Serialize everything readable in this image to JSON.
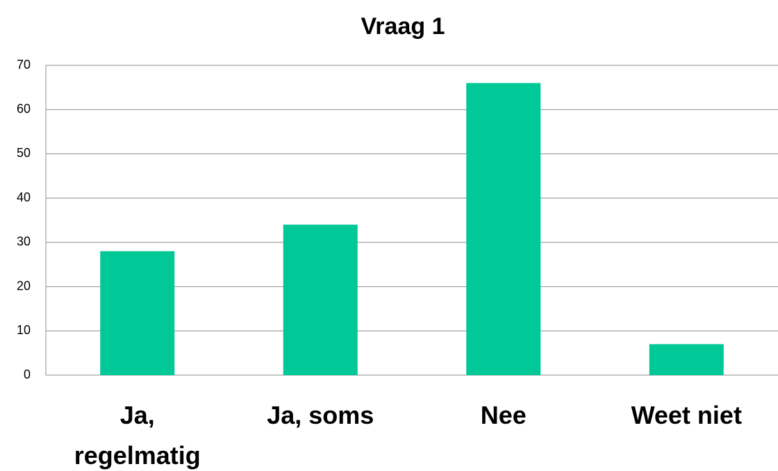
{
  "chart_data": {
    "type": "bar",
    "title": "Vraag 1",
    "categories": [
      "Ja, regelmatig",
      "Ja, soms",
      "Nee",
      "Weet niet"
    ],
    "values": [
      28,
      34,
      66,
      7
    ],
    "color": "#00c896",
    "ylim": [
      0,
      70
    ],
    "yticks": [
      0,
      10,
      20,
      30,
      40,
      50,
      60,
      70
    ],
    "grid": true
  }
}
